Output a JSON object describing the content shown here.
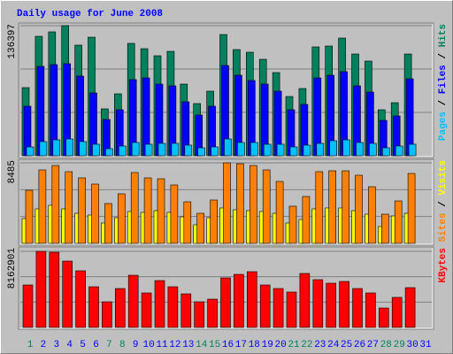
{
  "chart_data": {
    "type": "bar",
    "title": "Daily usage for June 2008",
    "categories": [
      "1",
      "2",
      "3",
      "4",
      "5",
      "6",
      "7",
      "8",
      "9",
      "10",
      "11",
      "12",
      "13",
      "14",
      "15",
      "16",
      "17",
      "18",
      "19",
      "20",
      "21",
      "22",
      "23",
      "24",
      "25",
      "26",
      "27",
      "28",
      "29",
      "30",
      "31"
    ],
    "category_colors": [
      "#00805c",
      "#0000ff",
      "#0000ff",
      "#0000ff",
      "#0000ff",
      "#0000ff",
      "#00805c",
      "#00805c",
      "#0000ff",
      "#0000ff",
      "#0000ff",
      "#0000ff",
      "#0000ff",
      "#00805c",
      "#00805c",
      "#0000ff",
      "#0000ff",
      "#0000ff",
      "#0000ff",
      "#0000ff",
      "#00805c",
      "#00805c",
      "#0000ff",
      "#0000ff",
      "#0000ff",
      "#0000ff",
      "#0000ff",
      "#00805c",
      "#00805c",
      "#0000ff",
      "#0000ff"
    ],
    "legend_separator": " / ",
    "panels": [
      {
        "ylim": [
          0,
          136397
        ],
        "yticks": [
          136397
        ],
        "series": [
          {
            "name": "Pages",
            "color": "#00c0ff",
            "values": [
              9280,
              14850,
              16700,
              17630,
              14850,
              12060,
              7420,
              10210,
              13920,
              12060,
              12990,
              12990,
              11130,
              8350,
              9280,
              17630,
              13920,
              13920,
              12060,
              12060,
              9280,
              11130,
              12990,
              15770,
              16700,
              13920,
              12990,
              8350,
              10210,
              12060,
              null
            ]
          },
          {
            "name": "Files",
            "color": "#0000ff",
            "values": [
              51960,
              93710,
              95570,
              96500,
              83510,
              65880,
              38040,
              48250,
              79800,
              81650,
              75160,
              73300,
              56600,
              42680,
              51960,
              94640,
              84430,
              78870,
              75160,
              67730,
              48250,
              53820,
              81650,
              84430,
              88150,
              73300,
              66810,
              37110,
              41750,
              80720,
              null
            ]
          },
          {
            "name": "Hits",
            "color": "#00805c",
            "values": [
              71450,
              125260,
              129900,
              136397,
              116000,
              124330,
              49180,
              64950,
              117840,
              112270,
              104850,
              109490,
              75160,
              54740,
              67730,
              127120,
              111340,
              108560,
              101140,
              87220,
              62170,
              70520,
              114130,
              115060,
              123410,
              106700,
              99280,
              48250,
              55670,
              106700,
              null
            ]
          }
        ]
      },
      {
        "ylim": [
          0,
          8485
        ],
        "yticks": [
          8485
        ],
        "series": [
          {
            "name": "Sites",
            "color": "#ff8000",
            "values": [
              5594,
              7739,
              8205,
              7553,
              6900,
              6247,
              4196,
              5222,
              7459,
              6900,
              6807,
              6154,
              4382,
              3170,
              4569,
              8485,
              8392,
              8205,
              7739,
              6527,
              3916,
              4942,
              7553,
              7646,
              7646,
              7180,
              5968,
              3077,
              4476,
              7366,
              null
            ]
          },
          {
            "name": "Visits",
            "color": "#ffff00",
            "values": [
              2611,
              3637,
              4009,
              3637,
              3170,
              2984,
              2145,
              2704,
              3357,
              3264,
              3450,
              3264,
              2797,
              1958,
              2704,
              3730,
              3543,
              3450,
              3357,
              3170,
              2145,
              2518,
              3637,
              3730,
              3730,
              3450,
              3077,
              1772,
              2891,
              3170,
              null
            ]
          }
        ]
      },
      {
        "ylim": [
          0,
          8162901
        ],
        "yticks": [
          8162901
        ],
        "series": [
          {
            "name": "KBytes",
            "color": "#ff0000",
            "values": [
              4556000,
              8162901,
              8068000,
              7118000,
              6075000,
              4366000,
              2752000,
              4176000,
              5600000,
              3702000,
              5030000,
              4366000,
              3607000,
              2752000,
              3037000,
              5315000,
              5695000,
              5980000,
              4556000,
              4176000,
              3797000,
              5790000,
              5126000,
              4746000,
              4935000,
              4176000,
              3702000,
              2088000,
              3227000,
              4271000,
              null
            ]
          }
        ]
      }
    ]
  }
}
